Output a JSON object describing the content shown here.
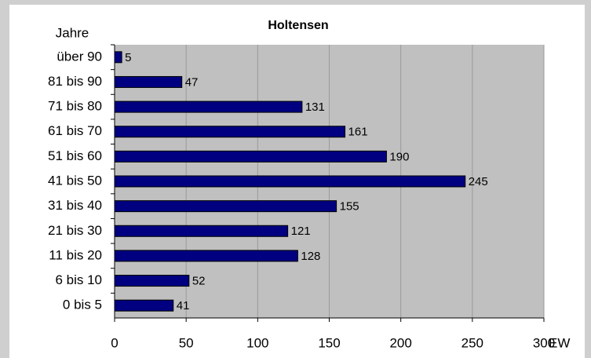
{
  "chart_data": {
    "type": "bar",
    "orientation": "horizontal",
    "title": "Holtensen",
    "y_label": "Jahre",
    "x_label": "EW",
    "categories": [
      "über 90",
      "81 bis 90",
      "71 bis 80",
      "61 bis 70",
      "51 bis 60",
      "41 bis 50",
      "31 bis 40",
      "21 bis 30",
      "11 bis 20",
      "6 bis 10",
      "0 bis 5"
    ],
    "values": [
      5,
      47,
      131,
      161,
      190,
      245,
      155,
      121,
      128,
      52,
      41
    ],
    "color": "#000080",
    "xlim": [
      0,
      300
    ],
    "xticks": [
      0,
      50,
      100,
      150,
      200,
      250,
      300
    ],
    "grid": true
  }
}
